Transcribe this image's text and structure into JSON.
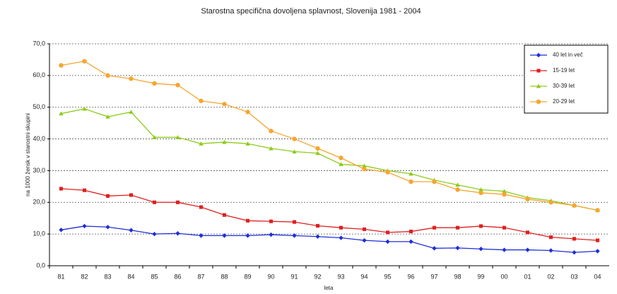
{
  "chart_data": {
    "type": "line",
    "title": "Starostna specifična dovoljena splavnost, Slovenija 1981 - 2004",
    "y_label": "na 1000 žensk v starostni skupini",
    "x_label": "leta",
    "categories": [
      "81",
      "82",
      "83",
      "84",
      "85",
      "86",
      "87",
      "88",
      "89",
      "90",
      "91",
      "92",
      "93",
      "94",
      "95",
      "96",
      "97",
      "98",
      "99",
      "00",
      "01",
      "02",
      "03",
      "04"
    ],
    "series": [
      {
        "name": "40 let in več",
        "color": "#1f2fd6",
        "marker": "diamond",
        "values": [
          11.3,
          12.5,
          12.2,
          11.2,
          10,
          10.2,
          9.5,
          9.5,
          9.5,
          9.8,
          9.5,
          9.2,
          8.8,
          8,
          7.6,
          7.6,
          5.5,
          5.6,
          5.3,
          5,
          5,
          4.8,
          4.2,
          4.6
        ]
      },
      {
        "name": "15-19 let",
        "color": "#e02020",
        "marker": "square",
        "values": [
          24.3,
          23.8,
          22,
          22.3,
          20,
          20,
          18.5,
          16,
          14.2,
          14,
          13.8,
          12.6,
          12,
          11.5,
          10.5,
          10.8,
          12,
          12,
          12.5,
          12,
          10.5,
          9,
          8.5,
          8
        ]
      },
      {
        "name": "30-39 let",
        "color": "#8ccc1a",
        "marker": "triangle",
        "values": [
          48,
          49.5,
          47,
          48.5,
          40.5,
          40.5,
          38.5,
          39,
          38.5,
          37,
          36,
          35.5,
          32,
          31.5,
          30,
          29,
          27,
          25.5,
          24,
          23.5,
          21.5,
          20.5,
          19,
          17.5
        ]
      },
      {
        "name": "20-29 let",
        "color": "#f7a530",
        "marker": "circle",
        "values": [
          63.2,
          64.5,
          60,
          59,
          57.5,
          57,
          52,
          51,
          48.5,
          42.5,
          40,
          37,
          34,
          30.5,
          29.5,
          26.5,
          26.5,
          24,
          23,
          22.5,
          21,
          20,
          19,
          17.5
        ]
      }
    ],
    "ylim": [
      0,
      70
    ],
    "yticks": [
      {
        "value": 0,
        "label": "0,0"
      },
      {
        "value": 10,
        "label": "10,0"
      },
      {
        "value": 20,
        "label": "20,0"
      },
      {
        "value": 30,
        "label": "30,0"
      },
      {
        "value": 40,
        "label": "40,0"
      },
      {
        "value": 50,
        "label": "50,0"
      },
      {
        "value": 60,
        "label": "60,0"
      },
      {
        "value": 70,
        "label": "70,0"
      }
    ],
    "grid": true,
    "legend": "top-right"
  }
}
